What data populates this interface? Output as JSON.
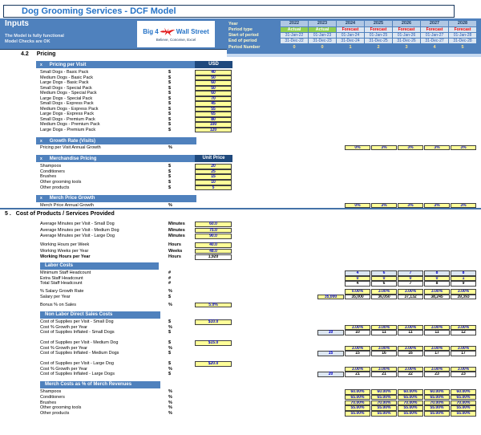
{
  "header": {
    "title": "Dog Grooming Services - DCF Model",
    "sheet_name": "Inputs",
    "status_1": "The Model is fully functional",
    "status_2": "Model Checks are OK",
    "logo_left": "Big 4",
    "logo_right": "Wall Street",
    "logo_tagline": "Believe, Conceive, Excel"
  },
  "colors": {
    "band_blue": "#4F81BD",
    "header_navy": "#1F497D",
    "input_yellow": "#FFFF99",
    "light_blue": "#DCE6F1",
    "actual_green": "#92D050",
    "forecast_red": "#FF0000",
    "title_blue": "#2573C7",
    "value_blue": "#0000CC"
  },
  "periods": {
    "labels": {
      "year": "Year",
      "type": "Period type",
      "start": "Start of period",
      "end": "End of period",
      "number": "Period Number"
    },
    "years": [
      "2022",
      "2023",
      "2024",
      "2025",
      "2026",
      "2027",
      "2028"
    ],
    "types": [
      "Actual",
      "Actual",
      "Forecast",
      "Forecast",
      "Forecast",
      "Forecast",
      "Forecast"
    ],
    "start": [
      "31-Jan-22",
      "01-Jan-23",
      "01-Jan-24",
      "01-Jan-25",
      "01-Jan-26",
      "01-Jan-27",
      "01-Jan-28"
    ],
    "end": [
      "31-Dec-22",
      "31-Dec-23",
      "31-Dec-24",
      "31-Dec-25",
      "31-Dec-26",
      "31-Dec-27",
      "31-Dec-28"
    ],
    "numbers": [
      "0",
      "0",
      "1",
      "2",
      "3",
      "4",
      "5"
    ]
  },
  "pricing_section": {
    "number": "4.2",
    "title": "Pricing",
    "visit": {
      "marker": "x",
      "header": "Pricing per Visit",
      "unit_header": "USD",
      "rows": [
        {
          "label": "Small Dogs - Basic Pack",
          "unit": "$",
          "value": "40"
        },
        {
          "label": "Medium Dogs - Basic Pack",
          "unit": "$",
          "value": "50"
        },
        {
          "label": "Large Dogs - Basic Pack",
          "unit": "$",
          "value": "60"
        },
        {
          "label": "Small Dogs - Special Pack",
          "unit": "$",
          "value": "50"
        },
        {
          "label": "Medium Dogs - Special Pack",
          "unit": "$",
          "value": "60"
        },
        {
          "label": "Large Dogs - Special Pack",
          "unit": "$",
          "value": "70"
        },
        {
          "label": "Small Dogs - Express Pack",
          "unit": "$",
          "value": "45"
        },
        {
          "label": "Medium Dogs - Express Pack",
          "unit": "$",
          "value": "55"
        },
        {
          "label": "Large Dogs - Express Pack",
          "unit": "$",
          "value": "65"
        },
        {
          "label": "Small Dogs - Premium Pack",
          "unit": "$",
          "value": "80"
        },
        {
          "label": "Medium Dogs - Premium Pack",
          "unit": "$",
          "value": "100"
        },
        {
          "label": "Large Dogs - Premium Pack",
          "unit": "$",
          "value": "120"
        }
      ]
    },
    "visit_growth": {
      "marker": "x",
      "header": "Growth Rate (Visits)",
      "row_label": "Pricing per Visit Annual Growth",
      "unit": "%",
      "values": [
        "0%",
        "3%",
        "3%",
        "3%",
        "3%"
      ]
    },
    "merch": {
      "marker": "x",
      "header": "Merchandise Pricing",
      "unit_header": "Unit Price",
      "rows": [
        {
          "label": "Shampoos",
          "unit": "$",
          "value": "20"
        },
        {
          "label": "Conditioners",
          "unit": "$",
          "value": "25"
        },
        {
          "label": "Brushes",
          "unit": "$",
          "value": "15"
        },
        {
          "label": "Other grooming tools",
          "unit": "$",
          "value": "10"
        },
        {
          "label": "Other products",
          "unit": "$",
          "value": "5"
        }
      ]
    },
    "merch_growth": {
      "marker": "x",
      "header": "Merch Price Growth",
      "row_label": "Merch Price Annual Growth",
      "unit": "%",
      "values": [
        "0%",
        "3%",
        "3%",
        "3%",
        "3%"
      ]
    }
  },
  "costs_section": {
    "number": "5 .",
    "title": "Cost of Products / Services Provided",
    "minutes_rows": [
      {
        "label": "Average Minutes per Visit - Small Dog",
        "unit": "Minutes",
        "value": "60.0"
      },
      {
        "label": "Average Minutes per Visit - Medium Dog",
        "unit": "Minutes",
        "value": "75.0"
      },
      {
        "label": "Average Minutes per Visit - Large Dog",
        "unit": "Minutes",
        "value": "90.0"
      }
    ],
    "working_rows": [
      {
        "label": "Working Hours per Week",
        "unit": "Hours",
        "value": "40.0"
      },
      {
        "label": "Working Weeks per Year",
        "unit": "Weeks",
        "value": "48.0"
      },
      {
        "label": "Working Hours per Year",
        "unit": "Hours",
        "value": "1,920"
      }
    ],
    "labor": {
      "header": "Labor Costs",
      "min_label": "Minimum Staff Headcount",
      "min_unit": "#",
      "min_values": [
        "4",
        "6",
        "7",
        "8",
        "8"
      ],
      "extra_label": "Extra Staff Headcount",
      "extra_unit": "#",
      "extra_values": [
        "0",
        "0",
        "0",
        "0",
        "1"
      ],
      "total_label": "Total Staff Headcount",
      "total_unit": "#",
      "total_values": [
        "4",
        "6",
        "7",
        "8",
        "9"
      ],
      "growth_label": "% Salary Growth Rate",
      "growth_unit": "%",
      "growth_values": [
        "0.00%",
        "3.00%",
        "3.00%",
        "3.00%",
        "3.00%"
      ],
      "salary_label": "Salary per Year",
      "salary_unit": "$",
      "salary_base": "35,000",
      "salary_values": [
        "35,000",
        "36,050",
        "37,132",
        "38,245",
        "39,393"
      ],
      "bonus_label": "Bonus % on Sales",
      "bonus_unit": "%",
      "bonus_value": "5.0%"
    },
    "non_labor": {
      "header": "Non Labor Direct Sales Costs",
      "groups": [
        {
          "cost_label": "Cost of Supplies per Visit - Small Dog",
          "cost_unit": "$",
          "cost_value": "$10.0",
          "growth_label": "Cost % Growth per Year",
          "growth_unit": "%",
          "growth_values": [
            "3.00%",
            "3.00%",
            "3.00%",
            "3.00%",
            "3.00%"
          ],
          "inf_label": "Cost of Supplies Inflated - Small Dogs",
          "inf_unit": "$",
          "inf_base": "10",
          "inf_values": [
            "10",
            "11",
            "11",
            "11",
            "12"
          ]
        },
        {
          "cost_label": "Cost of Supplies per Visit - Medium Dog",
          "cost_unit": "$",
          "cost_value": "$15.0",
          "growth_label": "Cost % Growth per Year",
          "growth_unit": "%",
          "growth_values": [
            "3.00%",
            "3.00%",
            "3.00%",
            "3.00%",
            "3.00%"
          ],
          "inf_label": "Cost of Supplies Inflated - Medium Dogs",
          "inf_unit": "$",
          "inf_base": "15",
          "inf_values": [
            "15",
            "16",
            "16",
            "17",
            "17"
          ]
        },
        {
          "cost_label": "Cost of Supplies per Visit - Large Dog",
          "cost_unit": "$",
          "cost_value": "$20.0",
          "growth_label": "Cost % Growth per Year",
          "growth_unit": "%",
          "growth_values": [
            "3.00%",
            "3.00%",
            "3.00%",
            "3.00%",
            "3.00%"
          ],
          "inf_label": "Cost of Supplies Inflated - Large Dogs",
          "inf_unit": "$",
          "inf_base": "20",
          "inf_values": [
            "21",
            "21",
            "22",
            "23",
            "23"
          ]
        }
      ]
    },
    "merch_costs": {
      "header": "Merch Costs as % of Merch Revenues",
      "rows": [
        {
          "label": "Shampoos",
          "unit": "%",
          "values": [
            "60.00%",
            "60.00%",
            "60.00%",
            "60.00%",
            "60.00%"
          ]
        },
        {
          "label": "Conditioners",
          "unit": "%",
          "values": [
            "65.00%",
            "65.00%",
            "65.00%",
            "65.00%",
            "65.00%"
          ]
        },
        {
          "label": "Brushes",
          "unit": "%",
          "values": [
            "70.00%",
            "70.00%",
            "70.00%",
            "70.00%",
            "70.00%"
          ]
        },
        {
          "label": "Other grooming tools",
          "unit": "%",
          "values": [
            "55.00%",
            "55.00%",
            "55.00%",
            "55.00%",
            "55.00%"
          ]
        },
        {
          "label": "Other products",
          "unit": "%",
          "values": [
            "55.00%",
            "55.00%",
            "55.00%",
            "55.00%",
            "55.00%"
          ]
        }
      ]
    }
  }
}
